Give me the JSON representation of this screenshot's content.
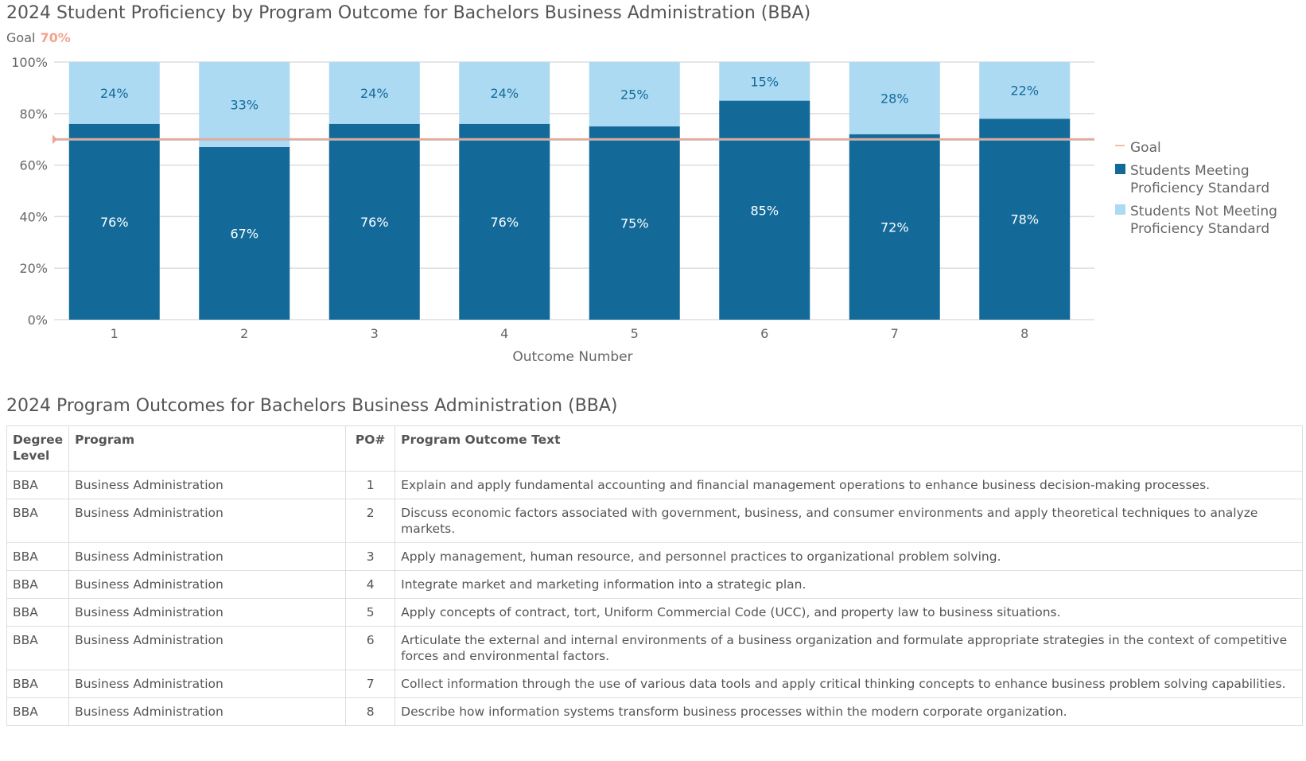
{
  "title": "2024 Student Proficiency by Program Outcome for Bachelors Business Administration (BBA)",
  "goal_label": "Goal",
  "goal_value": "70%",
  "chart_data": {
    "type": "bar",
    "stacked": true,
    "categories": [
      "1",
      "2",
      "3",
      "4",
      "5",
      "6",
      "7",
      "8"
    ],
    "series": [
      {
        "name": "Students Meeting Proficiency Standard",
        "values": [
          76,
          67,
          76,
          76,
          75,
          85,
          72,
          78
        ],
        "color": "#136a99"
      },
      {
        "name": "Students Not Meeting Proficiency Standard",
        "values": [
          24,
          33,
          24,
          24,
          25,
          15,
          28,
          22
        ],
        "color": "#acdaf3"
      }
    ],
    "goal": {
      "name": "Goal",
      "value": 70,
      "color": "#f4a38f"
    },
    "xlabel": "Outcome Number",
    "ylabel": "",
    "ylim": [
      0,
      100
    ],
    "yticks": [
      "0%",
      "20%",
      "40%",
      "60%",
      "80%",
      "100%"
    ],
    "grid": true,
    "legend": "right"
  },
  "table_title": "2024 Program Outcomes for Bachelors Business Administration (BBA)",
  "table": {
    "headers": [
      "Degree Level",
      "Program",
      "PO#",
      "Program Outcome Text"
    ],
    "rows": [
      [
        "BBA",
        "Business Administration",
        "1",
        "Explain and apply fundamental accounting and financial management operations to enhance business decision-making processes."
      ],
      [
        "BBA",
        "Business Administration",
        "2",
        "Discuss economic factors associated with government, business, and consumer environments and apply theoretical techniques to analyze markets."
      ],
      [
        "BBA",
        "Business Administration",
        "3",
        "Apply management, human resource, and personnel practices to organizational problem solving."
      ],
      [
        "BBA",
        "Business Administration",
        "4",
        "Integrate market and marketing information into a strategic plan."
      ],
      [
        "BBA",
        "Business Administration",
        "5",
        "Apply concepts of contract, tort, Uniform Commercial Code (UCC), and property law to business situations."
      ],
      [
        "BBA",
        "Business Administration",
        "6",
        "Articulate the external and internal environments of a business organization and formulate appropriate strategies in the context of competitive forces and environmental factors."
      ],
      [
        "BBA",
        "Business Administration",
        "7",
        "Collect information through the use of various data tools and apply critical thinking concepts to enhance business problem solving capabilities."
      ],
      [
        "BBA",
        "Business Administration",
        "8",
        "Describe how information systems transform business processes within the modern corporate organization."
      ]
    ]
  }
}
